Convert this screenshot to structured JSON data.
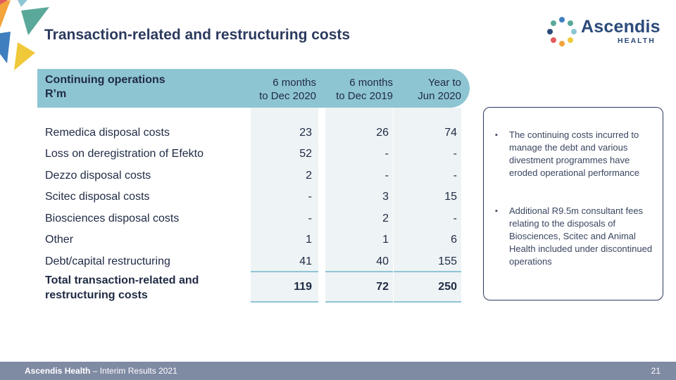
{
  "header": {
    "title": "Transaction-related and restructuring costs",
    "logo_name": "Ascendis",
    "logo_sub": "HEALTH"
  },
  "table": {
    "label_line1": "Continuing operations",
    "label_line2": "R’m",
    "columns": [
      {
        "line1": "6 months",
        "line2": "to Dec 2020"
      },
      {
        "line1": "6 months",
        "line2": "to Dec 2019"
      },
      {
        "line1": "Year to",
        "line2": "Jun 2020"
      }
    ],
    "rows": [
      {
        "label": "Remedica disposal costs",
        "values": [
          "23",
          "26",
          "74"
        ]
      },
      {
        "label": "Loss on deregistration of Efekto",
        "values": [
          "52",
          "-",
          "-"
        ]
      },
      {
        "label": "Dezzo disposal costs",
        "values": [
          "2",
          "-",
          "-"
        ]
      },
      {
        "label": "Scitec disposal costs",
        "values": [
          "-",
          "3",
          "15"
        ]
      },
      {
        "label": "Biosciences disposal costs",
        "values": [
          "-",
          "2",
          "-"
        ]
      },
      {
        "label": "Other",
        "values": [
          "1",
          "1",
          "6"
        ]
      },
      {
        "label": "Debt/capital restructuring",
        "values": [
          "41",
          "40",
          "155"
        ]
      }
    ],
    "total": {
      "label": "Total transaction-related and restructuring costs",
      "values": [
        "119",
        "72",
        "250"
      ]
    }
  },
  "notes": [
    "The continuing costs incurred to manage the debt and various divestment programmes have eroded operational performance",
    "Additional R9.5m consultant fees relating to the disposals of Biosciences, Scitec and Animal Health included under discontinued operations"
  ],
  "footer": {
    "brand": "Ascendis Health",
    "suffix": " – Interim Results 2021",
    "page": "21"
  },
  "colors": {
    "accent": "#8ec5d3",
    "navy": "#2c3a5e",
    "footer": "#7f8aa3"
  }
}
